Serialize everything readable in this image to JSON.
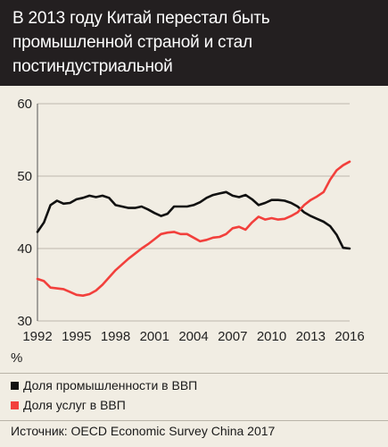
{
  "header": {
    "title_lines": [
      "В 2013 году Китай перестал быть",
      "промышленной страной и стал",
      "постиндустриальной"
    ]
  },
  "chart_data": {
    "type": "line",
    "title": "В 2013 году Китай перестал быть промышленной страной и стал постиндустриальной",
    "xlabel": "",
    "ylabel": "%",
    "xlim": [
      1992,
      2016
    ],
    "ylim": [
      30,
      60
    ],
    "xticks": [
      1992,
      1995,
      1998,
      2001,
      2004,
      2007,
      2010,
      2013,
      2016
    ],
    "yticks": [
      30,
      40,
      50,
      60
    ],
    "grid": "horizontal",
    "legend_position": "bottom",
    "series": [
      {
        "name": "Доля промышленности в ВВП",
        "color": "#111111",
        "x": [
          1992,
          1992.5,
          1993,
          1993.5,
          1994,
          1994.5,
          1995,
          1995.5,
          1996,
          1996.5,
          1997,
          1997.5,
          1998,
          1998.5,
          1999,
          1999.5,
          2000,
          2000.5,
          2001,
          2001.5,
          2002,
          2002.5,
          2003,
          2003.5,
          2004,
          2004.5,
          2005,
          2005.5,
          2006,
          2006.5,
          2007,
          2007.5,
          2008,
          2008.5,
          2009,
          2009.5,
          2010,
          2010.5,
          2011,
          2011.5,
          2012,
          2012.5,
          2013,
          2013.5,
          2014,
          2014.5,
          2015,
          2015.5,
          2016
        ],
        "values": [
          42.3,
          43.6,
          46.0,
          46.6,
          46.2,
          46.3,
          46.8,
          47.0,
          47.3,
          47.1,
          47.3,
          47.0,
          46.0,
          45.8,
          45.6,
          45.6,
          45.8,
          45.4,
          44.9,
          44.5,
          44.8,
          45.8,
          45.8,
          45.8,
          46.0,
          46.4,
          47.0,
          47.4,
          47.6,
          47.8,
          47.3,
          47.1,
          47.4,
          46.8,
          46.0,
          46.3,
          46.7,
          46.7,
          46.6,
          46.3,
          45.8,
          45.0,
          44.5,
          44.1,
          43.7,
          43.1,
          41.9,
          40.1,
          40.0
        ]
      },
      {
        "name": "Доля услуг в ВВП",
        "color": "#f2403c",
        "x": [
          1992,
          1992.5,
          1993,
          1993.5,
          1994,
          1994.5,
          1995,
          1995.5,
          1996,
          1996.5,
          1997,
          1997.5,
          1998,
          1998.5,
          1999,
          1999.5,
          2000,
          2000.5,
          2001,
          2001.5,
          2002,
          2002.5,
          2003,
          2003.5,
          2004,
          2004.5,
          2005,
          2005.5,
          2006,
          2006.5,
          2007,
          2007.5,
          2008,
          2008.5,
          2009,
          2009.5,
          2010,
          2010.5,
          2011,
          2011.5,
          2012,
          2012.5,
          2013,
          2013.5,
          2014,
          2014.5,
          2015,
          2015.5,
          2016
        ],
        "values": [
          35.8,
          35.5,
          34.6,
          34.5,
          34.4,
          34.0,
          33.6,
          33.5,
          33.7,
          34.2,
          35.0,
          36.0,
          37.0,
          37.8,
          38.6,
          39.3,
          40.0,
          40.6,
          41.3,
          42.0,
          42.2,
          42.3,
          42.0,
          42.0,
          41.5,
          41.0,
          41.2,
          41.5,
          41.6,
          42.0,
          42.8,
          43.0,
          42.6,
          43.6,
          44.4,
          44.0,
          44.2,
          44.0,
          44.1,
          44.5,
          45.0,
          46.0,
          46.7,
          47.2,
          47.8,
          49.5,
          50.8,
          51.5,
          52.0
        ]
      }
    ]
  },
  "source": "Источник: OECD Economic Survey China 2017"
}
